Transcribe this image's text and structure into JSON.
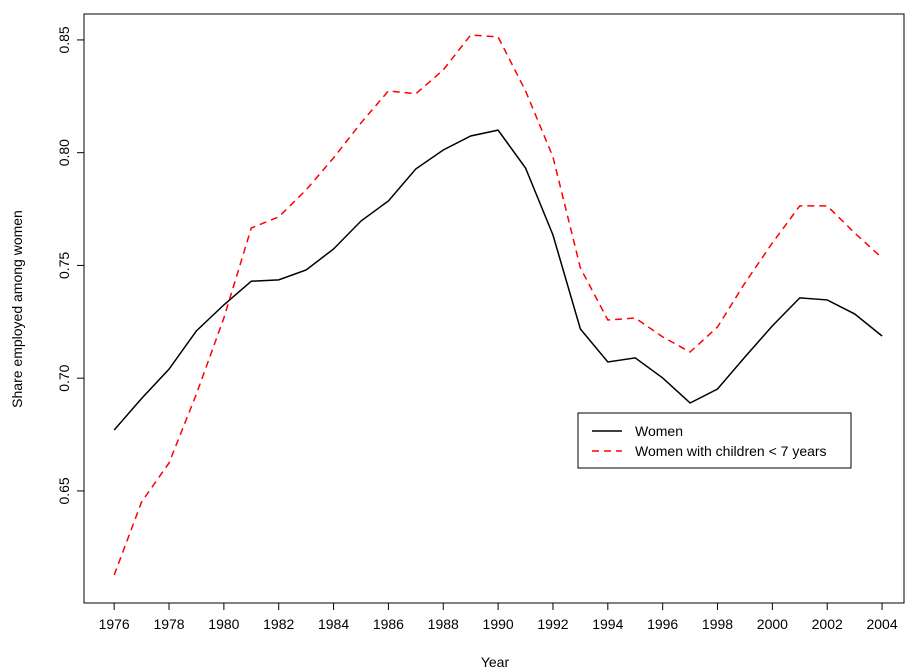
{
  "chart_data": {
    "type": "line",
    "x_label": "Year",
    "y_label": "Share employed among women",
    "x": [
      1976,
      1977,
      1978,
      1979,
      1980,
      1981,
      1982,
      1983,
      1984,
      1985,
      1986,
      1987,
      1988,
      1989,
      1990,
      1991,
      1992,
      1993,
      1994,
      1995,
      1996,
      1997,
      1998,
      1999,
      2000,
      2001,
      2002,
      2003,
      2004
    ],
    "series": [
      {
        "name": "Women",
        "color": "#000000",
        "dash": false,
        "values": [
          0.677,
          0.691,
          0.704,
          0.721,
          0.7325,
          0.743,
          0.7436,
          0.748,
          0.7573,
          0.7697,
          0.7786,
          0.7928,
          0.8012,
          0.8074,
          0.81,
          0.7932,
          0.7635,
          0.7218,
          0.7072,
          0.709,
          0.7001,
          0.689,
          0.6952,
          0.7094,
          0.7232,
          0.7356,
          0.7347,
          0.7285,
          0.7187
        ]
      },
      {
        "name": "Women with children < 7 years",
        "color": "#ff0000",
        "dash": true,
        "values": [
          0.6127,
          0.6451,
          0.6624,
          0.693,
          0.7267,
          0.7666,
          0.7715,
          0.7835,
          0.7977,
          0.8132,
          0.8274,
          0.8261,
          0.8367,
          0.8522,
          0.8513,
          0.8274,
          0.7981,
          0.7489,
          0.7258,
          0.7267,
          0.7183,
          0.7116,
          0.7227,
          0.7422,
          0.76,
          0.7764,
          0.7764,
          0.7644,
          0.7533
        ]
      }
    ],
    "xlim": [
      1974.9,
      2004.8
    ],
    "ylim": [
      0.6003,
      0.8615
    ],
    "xticks": [
      1976,
      1978,
      1980,
      1982,
      1984,
      1986,
      1988,
      1990,
      1992,
      1994,
      1996,
      1998,
      2000,
      2002,
      2004
    ],
    "yticks": [
      0.65,
      {
        "value": 0.7,
        "label": "0.70"
      },
      0.75,
      {
        "value": 0.8,
        "label": "0.80"
      },
      0.85
    ],
    "legend_position": "right"
  }
}
